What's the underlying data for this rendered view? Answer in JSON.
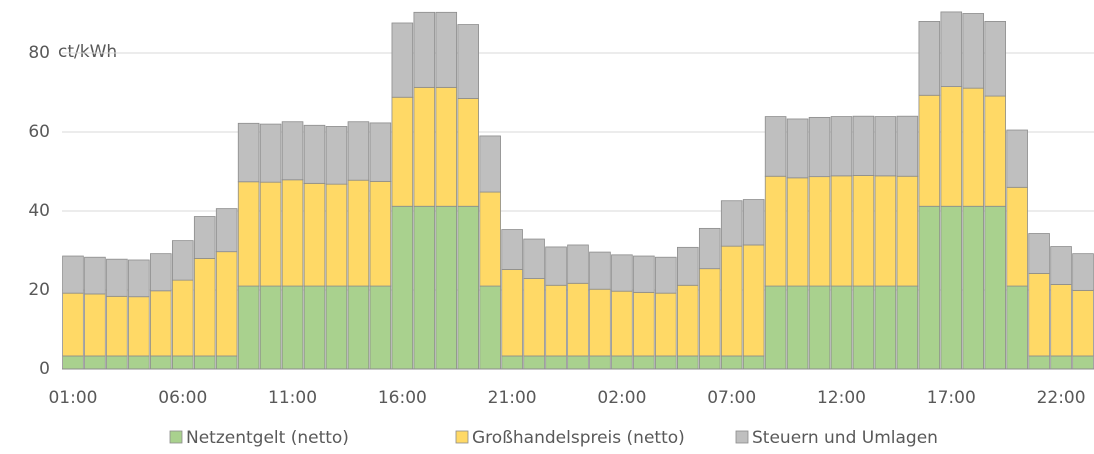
{
  "chart_data": {
    "type": "stacked_bar",
    "y_label": "ct/kWh",
    "categories": [
      "01:00",
      null,
      null,
      null,
      null,
      "06:00",
      null,
      null,
      null,
      null,
      "11:00",
      null,
      null,
      null,
      null,
      "16:00",
      null,
      null,
      null,
      null,
      "21:00",
      null,
      null,
      null,
      null,
      "02:00",
      null,
      null,
      null,
      null,
      "07:00",
      null,
      null,
      null,
      null,
      "12:00",
      null,
      null,
      null,
      null,
      "17:00",
      null,
      null,
      null,
      null,
      "22:00",
      null
    ],
    "series": [
      {
        "name": "Netzentgelt (netto)",
        "color": "#a9d18e",
        "values": [
          3.3,
          3.3,
          3.3,
          3.3,
          3.3,
          3.3,
          3.3,
          3.3,
          21,
          21,
          21,
          21,
          21,
          21,
          21,
          41.2,
          41.2,
          41.2,
          41.2,
          21,
          3.3,
          3.3,
          3.3,
          3.3,
          3.3,
          3.3,
          3.3,
          3.3,
          3.3,
          3.3,
          3.3,
          3.3,
          21,
          21,
          21,
          21,
          21,
          21,
          21,
          41.2,
          41.2,
          41.2,
          41.2,
          21,
          3.3,
          3.3,
          3.3
        ]
      },
      {
        "name": "Großhandelspreis (netto)",
        "color": "#ffd966",
        "values": [
          15.9,
          15.7,
          15.1,
          15.0,
          16.5,
          19.2,
          24.7,
          26.4,
          26.4,
          26.3,
          26.9,
          26.0,
          25.8,
          26.8,
          26.5,
          27.6,
          30.1,
          30.1,
          27.3,
          23.8,
          21.9,
          19.6,
          17.9,
          18.4,
          16.9,
          16.4,
          16.1,
          15.9,
          17.9,
          22.1,
          27.8,
          28.1,
          27.8,
          27.4,
          27.7,
          27.9,
          28.0,
          27.9,
          27.8,
          28.1,
          30.3,
          29.9,
          27.9,
          25.0,
          20.9,
          18.1,
          16.6
        ]
      },
      {
        "name": "Steuern und Umlagen",
        "color": "#bfbfbf",
        "values": [
          9.4,
          9.3,
          9.4,
          9.3,
          9.4,
          10.0,
          10.6,
          10.9,
          14.8,
          14.7,
          14.7,
          14.7,
          14.6,
          14.8,
          14.8,
          18.8,
          19.0,
          19.0,
          18.7,
          14.2,
          10.1,
          10.0,
          9.7,
          9.7,
          9.4,
          9.2,
          9.2,
          9.1,
          9.6,
          10.2,
          11.5,
          11.5,
          15.1,
          14.9,
          15.0,
          15.0,
          15.0,
          15.0,
          15.2,
          18.7,
          18.9,
          18.9,
          18.9,
          14.5,
          10.1,
          9.6,
          9.3
        ]
      }
    ],
    "ylim": [
      0,
      92
    ],
    "yticks": [
      0,
      20,
      40,
      60,
      80
    ],
    "grid": true,
    "legend": "bottom"
  }
}
